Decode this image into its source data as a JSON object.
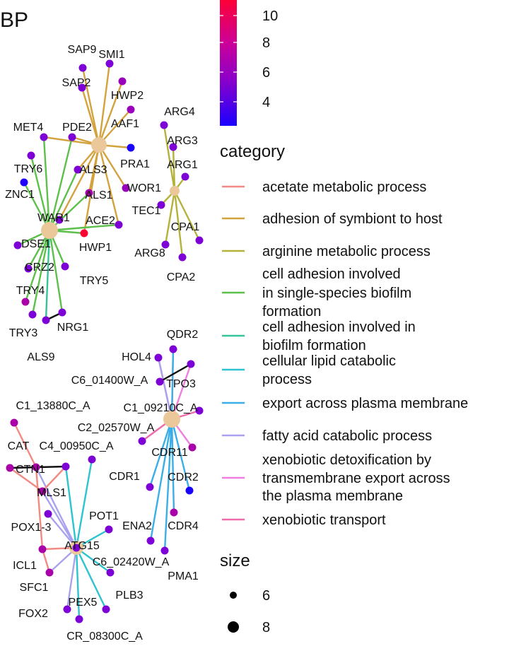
{
  "panel_label": "BP",
  "legend": {
    "colorbar": {
      "ticks": [
        "10",
        "8",
        "6",
        "4"
      ],
      "colors": [
        "#ff0033",
        "#cc0099",
        "#8800cc",
        "#1a00ff"
      ]
    },
    "category": {
      "title": "category",
      "items": [
        {
          "lines": [
            "acetate metabolic process"
          ],
          "color": "#f08a82"
        },
        {
          "lines": [
            "adhesion of symbiont to host"
          ],
          "color": "#d4a23c"
        },
        {
          "lines": [
            "arginine metabolic process"
          ],
          "color": "#b3b23a"
        },
        {
          "lines": [
            "cell adhesion involved",
            "in single-species biofilm",
            "formation"
          ],
          "color": "#5dc04a"
        },
        {
          "lines": [
            "cell adhesion involved in",
            "biofilm formation"
          ],
          "color": "#35c49a"
        },
        {
          "lines": [
            "cellular lipid catabolic",
            "process"
          ],
          "color": "#2dc3cf"
        },
        {
          "lines": [
            "export across plasma membrane"
          ],
          "color": "#3aaee6"
        },
        {
          "lines": [
            "fatty acid catabolic process"
          ],
          "color": "#a9a2ee"
        },
        {
          "lines": [
            "xenobiotic detoxification by",
            "transmembrane export across",
            "the plasma membrane"
          ],
          "color": "#f07fe0"
        },
        {
          "lines": [
            "xenobiotic transport"
          ],
          "color": "#f06aac"
        }
      ]
    },
    "size": {
      "title": "size",
      "items": [
        "6",
        "8"
      ]
    }
  },
  "network": {
    "hubs": [
      {
        "id": "h_adh",
        "color": "#d4a23c"
      },
      {
        "id": "h_cell",
        "color": "#5dc04a"
      },
      {
        "id": "h_arg",
        "color": "#b3b23a"
      },
      {
        "id": "h_xeno",
        "color": "#f06aac"
      },
      {
        "id": "h_lipid",
        "color": "#2dc3cf"
      }
    ],
    "genes": [
      {
        "name": "SAP9",
        "color": "#7d00d6"
      },
      {
        "name": "SMI1",
        "color": "#7d00d6"
      },
      {
        "name": "SAP2",
        "color": "#7d00d6"
      },
      {
        "name": "HWP2",
        "color": "#9900bb"
      },
      {
        "name": "AAF1",
        "color": "#9900bb"
      },
      {
        "name": "PDE2",
        "color": "#7d00d6"
      },
      {
        "name": "MET4",
        "color": "#7d00d6"
      },
      {
        "name": "PRA1",
        "color": "#1a00ff"
      },
      {
        "name": "ALS3",
        "color": "#7d00d6"
      },
      {
        "name": "TRY6",
        "color": "#7d00d6"
      },
      {
        "name": "ALS1",
        "color": "#aa00aa"
      },
      {
        "name": "WOR1",
        "color": "#9900bb"
      },
      {
        "name": "ZNC1",
        "color": "#2000ff"
      },
      {
        "name": "WAR1",
        "color": "#7d00d6"
      },
      {
        "name": "ACE2",
        "color": "#7d00d6"
      },
      {
        "name": "DSE1",
        "color": "#7d00d6"
      },
      {
        "name": "HWP1",
        "color": "#ff0033"
      },
      {
        "name": "CRZ2",
        "color": "#7d00d6"
      },
      {
        "name": "TRY5",
        "color": "#7d00d6"
      },
      {
        "name": "TRY4",
        "color": "#aa00aa"
      },
      {
        "name": "TRY3",
        "color": "#7d00d6"
      },
      {
        "name": "NRG1",
        "color": "#7d00d6"
      },
      {
        "name": "ALS9",
        "color": "#7d00d6"
      },
      {
        "name": "ARG4",
        "color": "#7d00d6"
      },
      {
        "name": "ARG3",
        "color": "#7d00d6"
      },
      {
        "name": "ARG1",
        "color": "#7d00d6"
      },
      {
        "name": "TEC1",
        "color": "#7d00d6"
      },
      {
        "name": "CPA1",
        "color": "#7d00d6"
      },
      {
        "name": "ARG8",
        "color": "#7d00d6"
      },
      {
        "name": "CPA2",
        "color": "#7d00d6"
      },
      {
        "name": "QDR2",
        "color": "#7d00d6"
      },
      {
        "name": "HOL4",
        "color": "#7d00d6"
      },
      {
        "name": "C6_01400W_A",
        "color": "#7d00d6"
      },
      {
        "name": "TPO3",
        "color": "#7d00d6"
      },
      {
        "name": "C1_09210C_A",
        "color": "#7d00d6"
      },
      {
        "name": "C2_02570W_A",
        "color": "#7d00d6"
      },
      {
        "name": "CDR11",
        "color": "#aa00aa"
      },
      {
        "name": "CDR1",
        "color": "#7d00d6"
      },
      {
        "name": "CDR2",
        "color": "#1a00ff"
      },
      {
        "name": "ENA2",
        "color": "#7d00d6"
      },
      {
        "name": "CDR4",
        "color": "#aa00aa"
      },
      {
        "name": "PMA1",
        "color": "#7d00d6"
      },
      {
        "name": "C1_13880C_A",
        "color": "#aa00aa"
      },
      {
        "name": "C4_00950C_A",
        "color": "#7d00d6"
      },
      {
        "name": "CAT",
        "color": "#aa00aa"
      },
      {
        "name": "CTN1",
        "color": "#aa00aa"
      },
      {
        "name": "MLS1",
        "color": "#aa00aa"
      },
      {
        "name": "POX1-3",
        "color": "#7d00d6"
      },
      {
        "name": "POT1",
        "color": "#7d00d6"
      },
      {
        "name": "ATG15",
        "color": "#7d00d6"
      },
      {
        "name": "C6_02420W_A",
        "color": "#7d00d6"
      },
      {
        "name": "ICL1",
        "color": "#aa00aa"
      },
      {
        "name": "SFC1",
        "color": "#aa00aa"
      },
      {
        "name": "PLB3",
        "color": "#7d00d6"
      },
      {
        "name": "PEX5",
        "color": "#7d00d6"
      },
      {
        "name": "FOX2",
        "color": "#7d00d6"
      },
      {
        "name": "CR_08300C_A",
        "color": "#7d00d6"
      }
    ]
  }
}
